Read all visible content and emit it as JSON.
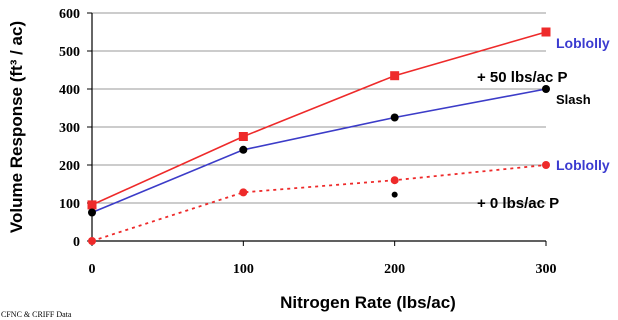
{
  "colors": {
    "red": "#ee2a2a",
    "blue": "#3c3cc8",
    "black": "#000000",
    "grid": "#999999",
    "label_blue": "#3b3bd0"
  },
  "chart_data": {
    "type": "line",
    "title": "",
    "xlabel": "Nitrogen Rate (lbs/ac)",
    "ylabel": "Volume Response (ft³ / ac)",
    "xlim": [
      0,
      300
    ],
    "ylim": [
      0,
      600
    ],
    "x_ticks": [
      0,
      100,
      200,
      300
    ],
    "y_ticks": [
      0,
      100,
      200,
      300,
      400,
      500,
      600
    ],
    "grid": "horizontal",
    "series": [
      {
        "name": "Loblolly",
        "group": "+ 50 lbs/ac P",
        "line": "solid",
        "marker": "square",
        "color": "#ee2a2a",
        "x": [
          0,
          100,
          200,
          300
        ],
        "y": [
          95,
          275,
          435,
          550
        ]
      },
      {
        "name": "Slash",
        "group": "+ 50 lbs/ac P",
        "line": "solid",
        "marker": "circle",
        "color": "#3c3cc8",
        "x": [
          0,
          100,
          200,
          300
        ],
        "y": [
          75,
          240,
          325,
          400
        ]
      },
      {
        "name": "Loblolly",
        "group": "+ 0 lbs/ac P",
        "line": "dotted",
        "marker": "circle",
        "color": "#ee2a2a",
        "x": [
          0,
          100,
          200,
          300
        ],
        "y": [
          0,
          128,
          160,
          200
        ]
      }
    ],
    "extra_points": [
      {
        "x": 200,
        "y": 122,
        "color": "#000000"
      }
    ],
    "annotations": {
      "loblolly_top": "Loblolly",
      "p50": "+ 50 lbs/ac P",
      "slash": "Slash",
      "loblolly_bottom": "Loblolly",
      "p0": "+ 0 lbs/ac P"
    },
    "source_note": "CFNC & CRIFF Data"
  }
}
